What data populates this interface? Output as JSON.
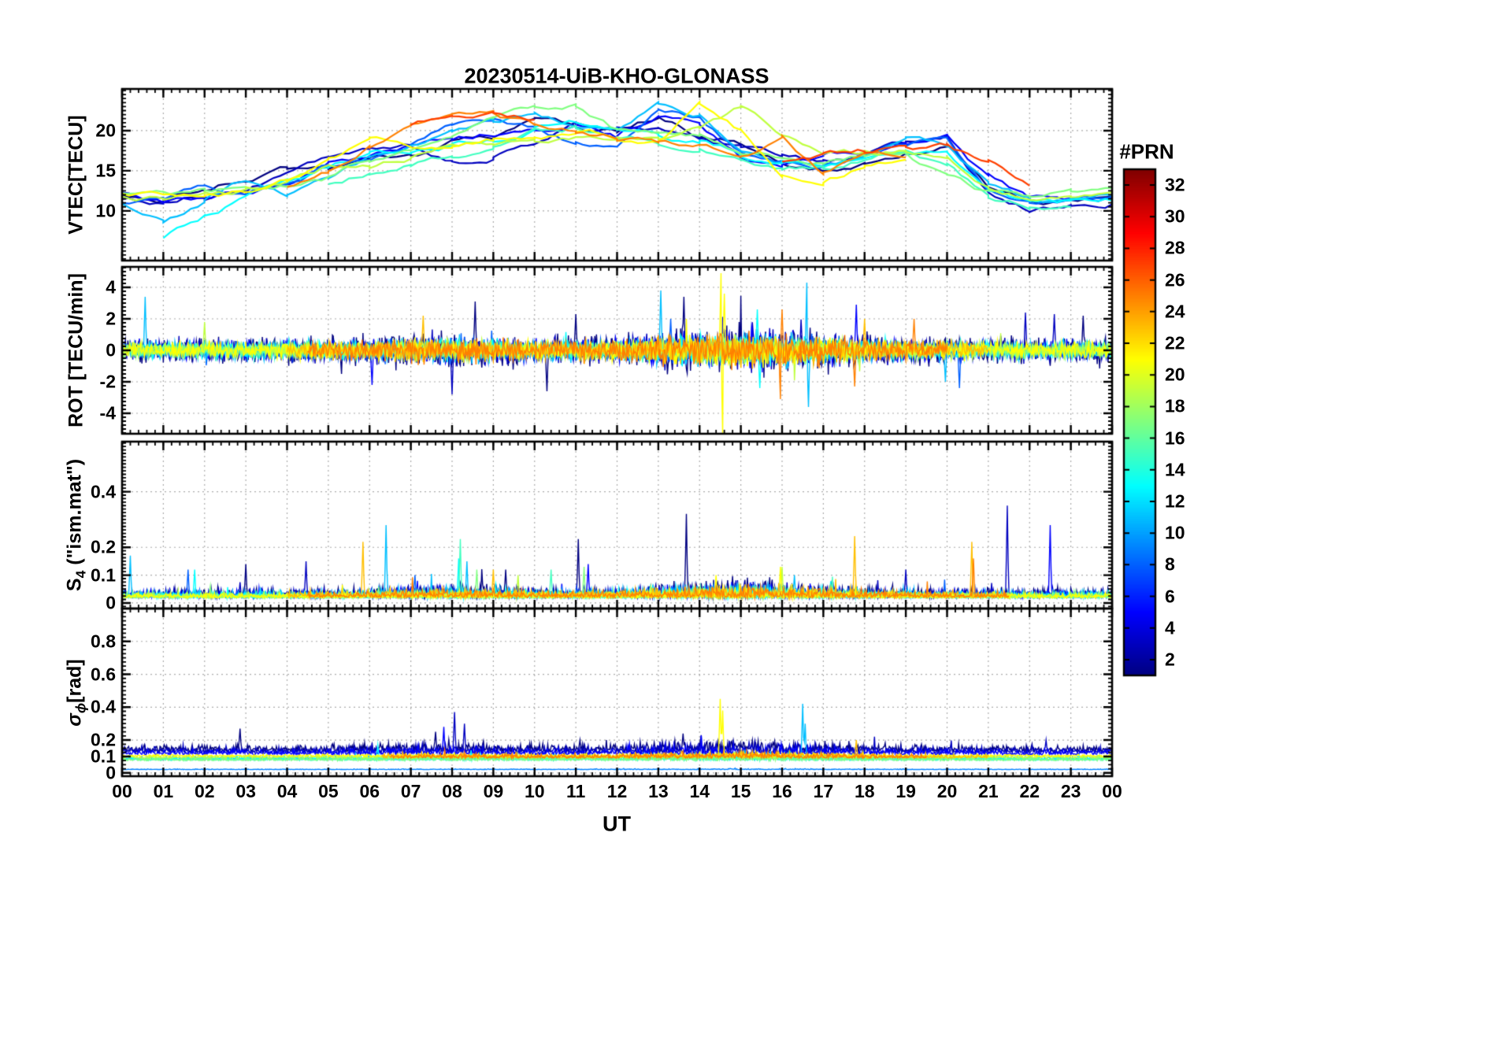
{
  "title": "20230514-UiB-KHO-GLONASS",
  "xlabel": "UT",
  "xlim": [
    0,
    24
  ],
  "x_tick_labels": [
    "00",
    "01",
    "02",
    "03",
    "04",
    "05",
    "06",
    "07",
    "08",
    "09",
    "10",
    "11",
    "12",
    "13",
    "14",
    "15",
    "16",
    "17",
    "18",
    "19",
    "20",
    "21",
    "22",
    "23",
    "00"
  ],
  "colorbar": {
    "label": "#PRN",
    "colormap": "jet",
    "min": 1,
    "max": 33,
    "ticks": [
      2,
      4,
      6,
      8,
      10,
      12,
      14,
      16,
      18,
      20,
      22,
      24,
      26,
      28,
      30,
      32
    ]
  },
  "chart_data": [
    {
      "type": "line",
      "name": "vtec",
      "ylabel_segments": [
        [
          "VTEC[TECU]",
          ""
        ]
      ],
      "ylim": [
        3.8,
        25.2
      ],
      "yticks": [
        10,
        15,
        20
      ],
      "x_step": 1,
      "series": [
        {
          "prn": 1,
          "values": [
            11.8,
            11.2,
            12.8,
            14.3,
            15.2,
            16.0,
            16.4,
            17.2,
            18.6,
            19.2,
            21.0,
            20.2,
            19.6,
            21.6,
            19.2,
            18.4,
            16.2,
            15.6,
            16.1,
            17.6,
            18.2,
            13.2,
            11.6,
            11.1,
            11.6
          ]
        },
        {
          "prn": 3,
          "values": [
            11.4,
            11.0,
            12.1,
            13.2,
            15.4,
            16.4,
            17.0,
            17.6,
            16.2,
            16.8,
            18.2,
            21.2,
            20.4,
            19.8,
            18.6,
            17.4,
            16.6,
            15.6,
            16.6,
            18.0,
            19.4,
            12.6,
            10.6,
            11.0,
            11.5
          ]
        },
        {
          "prn": 5,
          "values": [
            12.1,
            11.3,
            11.9,
            12.6,
            13.6,
            16.1,
            17.1,
            18.1,
            19.6,
            20.1,
            20.6,
            21.1,
            19.2,
            22.1,
            21.1,
            16.6,
            15.6,
            16.1,
            17.1,
            18.6,
            19.6,
            14.1,
            11.1,
            10.9,
            11.3
          ]
        },
        {
          "prn": 8,
          "values": [
            10.8,
            11.1,
            12.4,
            11.6,
            13.1,
            15.6,
            17.2,
            18.2,
            20.6,
            21.1,
            20.1,
            18.1,
            17.6,
            22.6,
            21.6,
            17.1,
            16.1,
            15.9,
            17.1,
            18.4,
            19.3,
            13.1,
            11.1,
            10.8,
            11.1
          ]
        },
        {
          "prn": 11,
          "values": [
            11.2,
            9.0,
            11.0,
            13.6,
            12.1,
            14.6,
            16.6,
            17.6,
            19.1,
            20.6,
            21.6,
            20.1,
            19.6,
            22.9,
            21.9,
            17.3,
            16.3,
            16.0,
            16.9,
            18.1,
            17.6,
            12.6,
            10.9,
            11.1,
            11.4
          ]
        },
        {
          "prn": 13,
          "values": [
            null,
            6.3,
            9.2,
            11.6,
            13.4,
            15.1,
            16.6,
            17.4,
            18.1,
            19.1,
            20.6,
            21.1,
            20.1,
            19.6,
            18.9,
            17.1,
            16.2,
            16.0,
            16.8,
            18.0,
            17.4,
            12.4,
            10.6,
            11.0,
            11.3
          ]
        },
        {
          "prn": 15,
          "values": [
            null,
            null,
            null,
            null,
            null,
            13.6,
            15.1,
            16.6,
            17.3,
            18.1,
            19.6,
            20.3,
            19.6,
            19.1,
            18.6,
            17.1,
            16.1,
            15.9,
            16.6,
            17.9,
            15.1,
            11.6,
            10.9,
            11.3,
            null
          ]
        },
        {
          "prn": 17,
          "values": [
            12.3,
            11.9,
            12.1,
            12.4,
            13.1,
            14.1,
            16.6,
            17.6,
            18.6,
            21.1,
            22.6,
            23.1,
            20.1,
            19.6,
            18.8,
            17.3,
            16.4,
            16.1,
            16.9,
            17.6,
            14.1,
            12.1,
            11.6,
            12.1,
            12.6
          ]
        },
        {
          "prn": 19,
          "values": [
            12.1,
            11.6,
            11.9,
            12.3,
            13.6,
            15.6,
            16.1,
            17.1,
            18.1,
            18.6,
            19.1,
            19.6,
            19.3,
            18.9,
            21.1,
            23.1,
            19.1,
            16.6,
            16.9,
            17.3,
            16.6,
            13.1,
            12.1,
            12.4,
            12.8
          ]
        },
        {
          "prn": 21,
          "values": [
            11.9,
            11.5,
            11.7,
            12.1,
            14.1,
            16.6,
            18.6,
            17.6,
            18.1,
            18.8,
            19.4,
            19.9,
            19.4,
            19.1,
            23.6,
            20.1,
            14.6,
            14.1,
            15.6,
            16.9,
            null,
            null,
            null,
            null,
            null
          ]
        },
        {
          "prn": 25,
          "values": [
            null,
            null,
            null,
            null,
            12.9,
            14.6,
            17.6,
            20.6,
            21.6,
            22.1,
            20.6,
            19.6,
            19.1,
            18.6,
            18.1,
            17.4,
            18.9,
            14.3,
            17.0,
            17.2,
            null,
            null,
            null,
            null,
            null
          ]
        },
        {
          "prn": 27,
          "values": [
            null,
            null,
            null,
            null,
            null,
            null,
            null,
            20.9,
            22.1,
            22.6,
            21.6,
            null,
            null,
            null,
            null,
            null,
            16.6,
            17.1,
            17.4,
            17.7,
            17.9,
            15.6,
            12.6,
            null,
            null
          ]
        }
      ]
    },
    {
      "type": "line",
      "name": "rot",
      "ylabel_segments": [
        [
          "ROT [TECU/min]",
          ""
        ]
      ],
      "ylim": [
        -5.3,
        5.3
      ],
      "yticks": [
        -4,
        -2,
        0,
        2,
        4
      ],
      "noise": true,
      "series": [
        {
          "prn": 1,
          "base": 0,
          "amp": 0.95,
          "spikes": [
            [
              8.55,
              3.1
            ],
            [
              10.3,
              -2.6
            ],
            [
              11.0,
              2.3
            ],
            [
              13.62,
              3.4
            ],
            [
              23.3,
              2.2
            ]
          ]
        },
        {
          "prn": 3,
          "base": 0,
          "amp": 0.8,
          "spikes": [
            [
              8.0,
              -2.8
            ],
            [
              21.9,
              2.4
            ],
            [
              22.6,
              2.3
            ]
          ]
        },
        {
          "prn": 5,
          "base": 0,
          "amp": 0.7,
          "spikes": [
            [
              6.05,
              -2.2
            ],
            [
              17.8,
              2.9
            ]
          ]
        },
        {
          "prn": 8,
          "base": 0,
          "amp": 0.6,
          "spikes": [
            [
              13.3,
              2.0
            ],
            [
              20.3,
              -2.4
            ]
          ]
        },
        {
          "prn": 11,
          "base": 0,
          "amp": 0.65,
          "spikes": [
            [
              0.55,
              3.4
            ],
            [
              13.05,
              3.8
            ],
            [
              16.6,
              4.3
            ],
            [
              16.65,
              -3.6
            ],
            [
              19.95,
              -2.0
            ]
          ]
        },
        {
          "prn": 13,
          "base": 0,
          "amp": 0.6,
          "spikes": [
            [
              15.4,
              2.6
            ],
            [
              15.45,
              -2.4
            ]
          ]
        },
        {
          "prn": 15,
          "base": 0,
          "amp": 0.5,
          "spikes": []
        },
        {
          "prn": 17,
          "base": 0,
          "amp": 0.5,
          "spikes": []
        },
        {
          "prn": 19,
          "base": 0,
          "amp": 0.55,
          "spikes": [
            [
              2.0,
              1.8
            ]
          ]
        },
        {
          "prn": 21,
          "base": 0,
          "amp": 0.6,
          "spikes": [
            [
              14.52,
              4.9
            ],
            [
              14.56,
              -5.4
            ],
            [
              14.6,
              3.6
            ]
          ]
        },
        {
          "prn": 23,
          "base": 0,
          "amp": 0.6,
          "spikes": [
            [
              7.3,
              2.2
            ],
            [
              18.0,
              2.0
            ]
          ],
          "range": [
            4,
            21
          ]
        },
        {
          "prn": 25,
          "base": 0,
          "amp": 0.65,
          "spikes": [
            [
              15.95,
              -3.1
            ],
            [
              16.0,
              2.6
            ],
            [
              17.75,
              -2.3
            ],
            [
              19.2,
              2.0
            ]
          ],
          "range": [
            4.5,
            20
          ]
        }
      ]
    },
    {
      "type": "line",
      "name": "s4",
      "ylabel_segments": [
        [
          "S",
          ""
        ],
        [
          "4",
          "sub"
        ],
        [
          " (\"ism.mat\")",
          ""
        ]
      ],
      "ylim": [
        -0.02,
        0.58
      ],
      "yticks": [
        0,
        0.1,
        0.2,
        0.4
      ],
      "noise": true,
      "series": [
        {
          "prn": 1,
          "base": 0.02,
          "amp": 0.045,
          "spikes": [
            [
              3.0,
              0.14
            ],
            [
              9.3,
              0.12
            ],
            [
              11.05,
              0.23
            ],
            [
              13.68,
              0.32
            ]
          ]
        },
        {
          "prn": 3,
          "base": 0.02,
          "amp": 0.04,
          "spikes": [
            [
              4.45,
              0.15
            ],
            [
              19.0,
              0.12
            ],
            [
              21.45,
              0.35
            ]
          ]
        },
        {
          "prn": 5,
          "base": 0.02,
          "amp": 0.035,
          "spikes": [
            [
              11.3,
              0.14
            ],
            [
              22.5,
              0.28
            ]
          ]
        },
        {
          "prn": 8,
          "base": 0.02,
          "amp": 0.03,
          "spikes": [
            [
              1.6,
              0.12
            ],
            [
              7.1,
              0.1
            ]
          ]
        },
        {
          "prn": 11,
          "base": 0.02,
          "amp": 0.035,
          "spikes": [
            [
              0.2,
              0.17
            ],
            [
              6.4,
              0.28
            ],
            [
              8.35,
              0.15
            ],
            [
              16.3,
              0.1
            ]
          ]
        },
        {
          "prn": 13,
          "base": 0.018,
          "amp": 0.03,
          "spikes": [
            [
              1.75,
              0.12
            ],
            [
              8.15,
              0.16
            ]
          ]
        },
        {
          "prn": 15,
          "base": 0.018,
          "amp": 0.028,
          "spikes": [
            [
              8.2,
              0.23
            ],
            [
              10.4,
              0.12
            ]
          ]
        },
        {
          "prn": 17,
          "base": 0.018,
          "amp": 0.028,
          "spikes": [
            [
              8.6,
              0.12
            ],
            [
              11.2,
              0.13
            ]
          ]
        },
        {
          "prn": 19,
          "base": 0.018,
          "amp": 0.026,
          "spikes": [
            [
              9.6,
              0.1
            ],
            [
              16.0,
              0.13
            ]
          ]
        },
        {
          "prn": 21,
          "base": 0.018,
          "amp": 0.026,
          "spikes": [
            [
              14.4,
              0.1
            ],
            [
              15.95,
              0.13
            ]
          ]
        },
        {
          "prn": 23,
          "base": 0.02,
          "amp": 0.03,
          "spikes": [
            [
              5.85,
              0.22
            ],
            [
              9.0,
              0.12
            ],
            [
              17.75,
              0.24
            ],
            [
              20.6,
              0.22
            ]
          ],
          "range": [
            4,
            21.5
          ]
        },
        {
          "prn": 25,
          "base": 0.02,
          "amp": 0.028,
          "spikes": [
            [
              20.65,
              0.16
            ]
          ],
          "range": [
            4.5,
            21.5
          ]
        }
      ]
    },
    {
      "type": "line",
      "name": "sigma-phi",
      "ylabel_segments": [
        [
          "σ",
          "it"
        ],
        [
          "ϕ",
          "it sub"
        ],
        [
          "[rad]",
          ""
        ]
      ],
      "ylim": [
        -0.02,
        1.0
      ],
      "yticks": [
        0,
        0.1,
        0.2,
        0.4,
        0.6,
        0.8
      ],
      "noise": true,
      "series": [
        {
          "prn": 1,
          "base": 0.13,
          "amp": 0.055,
          "spikes": [
            [
              2.85,
              0.27
            ],
            [
              7.6,
              0.25
            ],
            [
              11.1,
              0.2
            ],
            [
              13.6,
              0.24
            ]
          ]
        },
        {
          "prn": 3,
          "base": 0.12,
          "amp": 0.05,
          "spikes": [
            [
              8.05,
              0.37
            ],
            [
              8.3,
              0.3
            ],
            [
              22.4,
              0.2
            ]
          ]
        },
        {
          "prn": 5,
          "base": 0.11,
          "amp": 0.045,
          "spikes": [
            [
              7.8,
              0.28
            ],
            [
              12.3,
              0.18
            ]
          ]
        },
        {
          "prn": 9,
          "base": 0.02,
          "amp": 0.005,
          "spikes": []
        },
        {
          "prn": 11,
          "base": 0.08,
          "amp": 0.03,
          "spikes": [
            [
              16.5,
              0.42
            ],
            [
              16.55,
              0.3
            ]
          ]
        },
        {
          "prn": 13,
          "base": 0.08,
          "amp": 0.028,
          "spikes": [
            [
              6.2,
              0.17
            ]
          ]
        },
        {
          "prn": 15,
          "base": 0.075,
          "amp": 0.025,
          "spikes": []
        },
        {
          "prn": 17,
          "base": 0.075,
          "amp": 0.025,
          "spikes": []
        },
        {
          "prn": 19,
          "base": 0.09,
          "amp": 0.02,
          "spikes": []
        },
        {
          "prn": 21,
          "base": 0.1,
          "amp": 0.018,
          "spikes": [
            [
              14.5,
              0.45
            ],
            [
              14.55,
              0.38
            ]
          ]
        },
        {
          "prn": 23,
          "base": 0.09,
          "amp": 0.03,
          "spikes": [
            [
              17.8,
              0.2
            ]
          ],
          "range": [
            6.3,
            21
          ]
        },
        {
          "prn": 25,
          "base": 0.09,
          "amp": 0.03,
          "spikes": [],
          "range": [
            6.5,
            19.5
          ]
        }
      ]
    }
  ]
}
